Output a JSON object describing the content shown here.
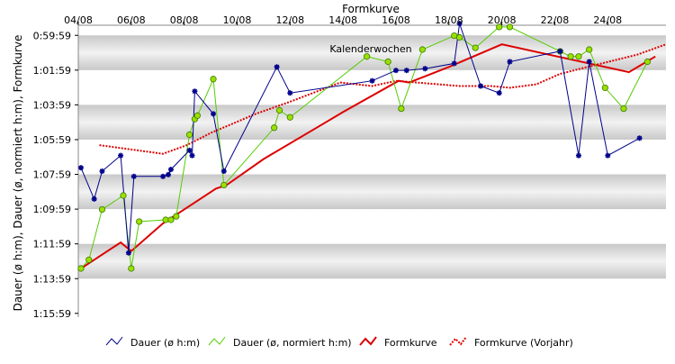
{
  "chart_data": {
    "type": "line",
    "title": "Formkurve",
    "ylabel": "Dauer (ø h:m), Dauer (ø, normiert h:m), Formkurve",
    "annotation": "Kalenderwochen",
    "x_unit": "day of August",
    "x_ticks": [
      "04/08",
      "06/08",
      "08/08",
      "10/08",
      "12/08",
      "14/08",
      "16/08",
      "18/08",
      "20/08",
      "22/08",
      "24/08"
    ],
    "x_range": [
      4,
      26.2
    ],
    "y_ticks": [
      "0:59:59",
      "1:01:59",
      "1:03:59",
      "1:05:59",
      "1:07:59",
      "1:09:59",
      "1:11:59",
      "1:13:59",
      "1:15:59"
    ],
    "y_range_minutes": [
      59.4,
      76.2
    ],
    "y_reversed": true,
    "grid": "alternating horizontal bands",
    "legend_position": "bottom",
    "series": [
      {
        "name": "Dauer (ø h:m)",
        "color": "#00008b",
        "marker": "star",
        "points": [
          [
            4.1,
            67.6
          ],
          [
            4.6,
            69.4
          ],
          [
            4.9,
            67.8
          ],
          [
            5.6,
            66.9
          ],
          [
            5.9,
            72.5
          ],
          [
            6.1,
            68.1
          ],
          [
            7.2,
            68.1
          ],
          [
            7.4,
            68.0
          ],
          [
            7.5,
            67.7
          ],
          [
            8.2,
            66.6
          ],
          [
            8.3,
            66.9
          ],
          [
            8.4,
            63.2
          ],
          [
            9.1,
            64.5
          ],
          [
            9.5,
            67.8
          ],
          [
            11.5,
            61.8
          ],
          [
            12,
            63.3
          ],
          [
            15.1,
            62.6
          ],
          [
            16,
            62.0
          ],
          [
            16.4,
            62.0
          ],
          [
            17.1,
            61.9
          ],
          [
            18.2,
            61.6
          ],
          [
            18.4,
            59.3
          ],
          [
            19.2,
            62.9
          ],
          [
            19.9,
            63.3
          ],
          [
            20.3,
            61.5
          ],
          [
            22.2,
            60.9
          ],
          [
            22.9,
            66.9
          ],
          [
            23.3,
            61.5
          ],
          [
            24,
            66.9
          ],
          [
            25.2,
            65.9
          ]
        ]
      },
      {
        "name": "Dauer (ø, normiert h:m)",
        "color": "#55cc00",
        "marker": "circle",
        "points": [
          [
            4.1,
            73.4
          ],
          [
            4.4,
            72.9
          ],
          [
            4.9,
            70.0
          ],
          [
            5.7,
            69.2
          ],
          [
            6.0,
            73.4
          ],
          [
            6.3,
            70.7
          ],
          [
            7.3,
            70.6
          ],
          [
            7.5,
            70.6
          ],
          [
            7.7,
            70.4
          ],
          [
            8.2,
            65.7
          ],
          [
            8.4,
            64.8
          ],
          [
            8.5,
            64.6
          ],
          [
            9.1,
            62.5
          ],
          [
            9.5,
            68.6
          ],
          [
            11.4,
            65.3
          ],
          [
            11.6,
            64.3
          ],
          [
            12,
            64.7
          ],
          [
            14.9,
            61.2
          ],
          [
            15.7,
            61.5
          ],
          [
            16.2,
            64.2
          ],
          [
            17,
            60.8
          ],
          [
            18.2,
            60.0
          ],
          [
            18.4,
            60.1
          ],
          [
            19.0,
            60.7
          ],
          [
            19.9,
            59.5
          ],
          [
            20.3,
            59.5
          ],
          [
            22.2,
            60.9
          ],
          [
            22.6,
            61.2
          ],
          [
            22.9,
            61.2
          ],
          [
            23.3,
            60.8
          ],
          [
            23.9,
            63.0
          ],
          [
            24.6,
            64.2
          ],
          [
            25.5,
            61.5
          ]
        ]
      },
      {
        "name": "Formkurve",
        "color": "#dd0000",
        "line_style": "solid",
        "points": [
          [
            4,
            73.5
          ],
          [
            5.6,
            71.9
          ],
          [
            6.0,
            72.4
          ],
          [
            7.2,
            70.8
          ],
          [
            8,
            70.0
          ],
          [
            8.6,
            69.4
          ],
          [
            9.2,
            68.8
          ],
          [
            9.6,
            68.6
          ],
          [
            11,
            67.1
          ],
          [
            13,
            65.3
          ],
          [
            14,
            64.4
          ],
          [
            16.1,
            62.6
          ],
          [
            16.5,
            62.7
          ],
          [
            18,
            61.8
          ],
          [
            20,
            60.5
          ],
          [
            24.8,
            62.1
          ],
          [
            25.8,
            61.2
          ]
        ]
      },
      {
        "name": "Formkurve (Vorjahr)",
        "color": "#dd0000",
        "line_style": "dotted",
        "points": [
          [
            4.8,
            66.3
          ],
          [
            7.2,
            66.8
          ],
          [
            8.1,
            66.3
          ],
          [
            9,
            65.6
          ],
          [
            10.7,
            64.5
          ],
          [
            12,
            63.8
          ],
          [
            13.9,
            62.7
          ],
          [
            15.1,
            62.9
          ],
          [
            16,
            62.6
          ],
          [
            18.4,
            62.9
          ],
          [
            19.6,
            62.9
          ],
          [
            20.3,
            63.0
          ],
          [
            21.3,
            62.8
          ],
          [
            22.2,
            62.2
          ],
          [
            23.5,
            61.7
          ],
          [
            25.1,
            61.1
          ],
          [
            26.2,
            60.5
          ]
        ]
      }
    ]
  }
}
